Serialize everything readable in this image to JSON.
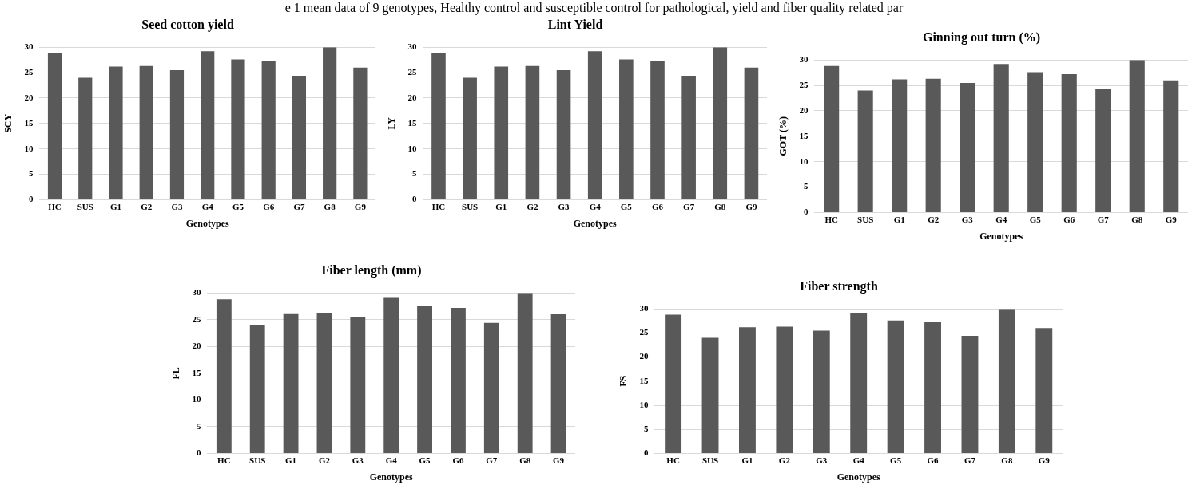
{
  "chart_data": [
    {
      "type": "other",
      "title": "e 1 mean data of 9 genotypes, Healthy control and susceptible control for pathological, yield and fiber quality related par"
    },
    {
      "type": "bar",
      "title": "Seed cotton yield",
      "xlabel": "Genotypes",
      "ylabel": "SCY",
      "categories": [
        "HC",
        "SUS",
        "G1",
        "G2",
        "G3",
        "G4",
        "G5",
        "G6",
        "G7",
        "G8",
        "G9"
      ],
      "values": [
        28.8,
        24,
        26.2,
        26.3,
        25.5,
        29.2,
        27.6,
        27.2,
        24.4,
        30,
        26
      ],
      "color": "#595959",
      "ylim": [
        0,
        30
      ],
      "yticks": [
        0,
        5,
        10,
        15,
        20,
        25,
        30
      ],
      "grid": "y"
    },
    {
      "type": "bar",
      "title": "Lint Yield",
      "xlabel": "Genotypes",
      "ylabel": "LY",
      "categories": [
        "HC",
        "SUS",
        "G1",
        "G2",
        "G3",
        "G4",
        "G5",
        "G6",
        "G7",
        "G8",
        "G9"
      ],
      "values": [
        28.8,
        24,
        26.2,
        26.3,
        25.5,
        29.2,
        27.6,
        27.2,
        24.4,
        30,
        26
      ],
      "color": "#595959",
      "ylim": [
        0,
        30
      ],
      "yticks": [
        0,
        5,
        10,
        15,
        20,
        25,
        30
      ],
      "grid": "y"
    },
    {
      "type": "bar",
      "title": "Ginning out turn (%)",
      "xlabel": "Genotypes",
      "ylabel": "GOT (%)",
      "categories": [
        "HC",
        "SUS",
        "G1",
        "G2",
        "G3",
        "G4",
        "G5",
        "G6",
        "G7",
        "G8",
        "G9"
      ],
      "values": [
        28.8,
        24,
        26.2,
        26.3,
        25.5,
        29.2,
        27.6,
        27.2,
        24.4,
        30,
        26
      ],
      "color": "#595959",
      "ylim": [
        0,
        30
      ],
      "yticks": [
        0,
        5,
        10,
        15,
        20,
        25,
        30
      ],
      "grid": "y"
    },
    {
      "type": "bar",
      "title": "Fiber length (mm)",
      "xlabel": "Genotypes",
      "ylabel": "FL",
      "categories": [
        "HC",
        "SUS",
        "G1",
        "G2",
        "G3",
        "G4",
        "G5",
        "G6",
        "G7",
        "G8",
        "G9"
      ],
      "values": [
        28.8,
        24,
        26.2,
        26.3,
        25.5,
        29.2,
        27.6,
        27.2,
        24.4,
        30,
        26
      ],
      "color": "#595959",
      "ylim": [
        0,
        30
      ],
      "yticks": [
        0,
        5,
        10,
        15,
        20,
        25,
        30
      ],
      "grid": "y"
    },
    {
      "type": "bar",
      "title": "Fiber strength",
      "xlabel": "Genotypes",
      "ylabel": "FS",
      "categories": [
        "HC",
        "SUS",
        "G1",
        "G2",
        "G3",
        "G4",
        "G5",
        "G6",
        "G7",
        "G8",
        "G9"
      ],
      "values": [
        28.8,
        24,
        26.2,
        26.3,
        25.5,
        29.2,
        27.6,
        27.2,
        24.4,
        30,
        26
      ],
      "color": "#595959",
      "ylim": [
        0,
        30
      ],
      "yticks": [
        0,
        5,
        10,
        15,
        20,
        25,
        30
      ],
      "grid": "y"
    }
  ]
}
